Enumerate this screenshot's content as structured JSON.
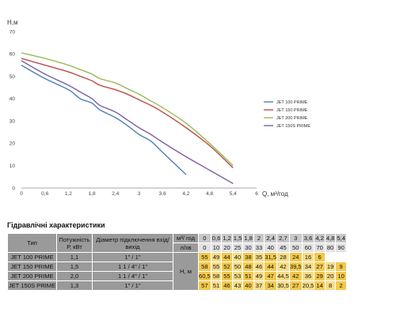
{
  "chart_data": {
    "type": "line",
    "ylabel": "H,м",
    "xlabel": "Q, м³/год",
    "x_ticks": [
      "0",
      "0,6",
      "1,2",
      "1,8",
      "2,4",
      "3",
      "3,6",
      "4,2",
      "4,8",
      "5,4",
      "6"
    ],
    "y_ticks": [
      "0",
      "10",
      "20",
      "30",
      "40",
      "50",
      "60",
      "70"
    ],
    "xlim": [
      0,
      6
    ],
    "ylim": [
      0,
      70
    ],
    "grid": false,
    "legend_position": "right",
    "series": [
      {
        "name": "JET 100 PRIME",
        "color": "#4a7ebb",
        "x": [
          0,
          0.6,
          1.2,
          1.5,
          1.8,
          2,
          2.4,
          2.7,
          3,
          3.3,
          3.6,
          4.2
        ],
        "y": [
          55,
          49,
          44,
          40,
          38,
          35,
          31.5,
          28,
          24,
          21,
          16,
          6
        ]
      },
      {
        "name": "JET 150 PRIME",
        "color": "#be4b48",
        "x": [
          0,
          0.6,
          1.2,
          1.5,
          1.8,
          2,
          2.4,
          2.7,
          3,
          3.3,
          3.6,
          4.2,
          4.8,
          5.4
        ],
        "y": [
          58,
          55,
          52,
          50,
          48,
          46,
          44,
          42,
          39.5,
          37,
          34,
          27,
          19,
          9
        ]
      },
      {
        "name": "JET 200 PRIME",
        "color": "#98b954",
        "x": [
          0,
          0.6,
          1.2,
          1.5,
          1.8,
          2,
          2.4,
          2.7,
          3,
          3.3,
          3.6,
          4.2,
          4.8,
          5.4
        ],
        "y": [
          60.5,
          58,
          55,
          53,
          51,
          49,
          47,
          44.5,
          42,
          39,
          36,
          29,
          20,
          10
        ]
      },
      {
        "name": "JET 150S PRIME",
        "color": "#7d60a0",
        "x": [
          0,
          0.6,
          1.2,
          1.5,
          1.8,
          2,
          2.4,
          2.7,
          3,
          3.3,
          3.6,
          4.2,
          4.8,
          5.4
        ],
        "y": [
          57,
          51,
          46,
          43,
          40,
          37,
          34,
          30.5,
          27,
          24,
          20.5,
          14,
          8,
          2
        ]
      }
    ]
  },
  "table": {
    "title": "Гідравлічні характеристики",
    "headers": {
      "type": "Тип",
      "power": "Потужність Р, кВт",
      "diameter": "Діаметр підключення вхід/вихід",
      "q_unit": "м³/ год",
      "lh_unit": "л/хв",
      "h_label": "Н, м"
    },
    "q_values": [
      "0",
      "0,6",
      "1,2",
      "1,5",
      "1,8",
      "2",
      "2,4",
      "2,7",
      "3",
      "3,6",
      "4,2",
      "4,8",
      "5,4"
    ],
    "lh_values": [
      "0",
      "10",
      "20",
      "25",
      "30",
      "33",
      "40",
      "45",
      "50",
      "60",
      "70",
      "80",
      "90"
    ],
    "rows": [
      {
        "type": "JET 100 PRIME",
        "power": "1,1",
        "diameter": "1\" / 1\"",
        "h": [
          "55",
          "49",
          "44",
          "40",
          "38",
          "35",
          "31,5",
          "28",
          "24",
          "16",
          "6",
          "",
          ""
        ]
      },
      {
        "type": "JET 150 PRIME",
        "power": "1,5",
        "diameter": "1 1 / 4\" / 1\"",
        "h": [
          "58",
          "55",
          "52",
          "50",
          "48",
          "46",
          "44",
          "42",
          "39,5",
          "34",
          "27",
          "19",
          "9"
        ]
      },
      {
        "type": "JET 200 PRIME",
        "power": "2,0",
        "diameter": "1 1 / 4\" / 1\"",
        "h": [
          "60,5",
          "58",
          "55",
          "53",
          "51",
          "49",
          "47",
          "44,5",
          "42",
          "36",
          "29",
          "20",
          "10"
        ]
      },
      {
        "type": "JET 150S PRIME",
        "power": "1,3",
        "diameter": "1\" / 1\"",
        "h": [
          "57",
          "51",
          "46",
          "43",
          "40",
          "37",
          "34",
          "30,5",
          "27",
          "20,5",
          "14",
          "8",
          "2"
        ]
      }
    ]
  }
}
